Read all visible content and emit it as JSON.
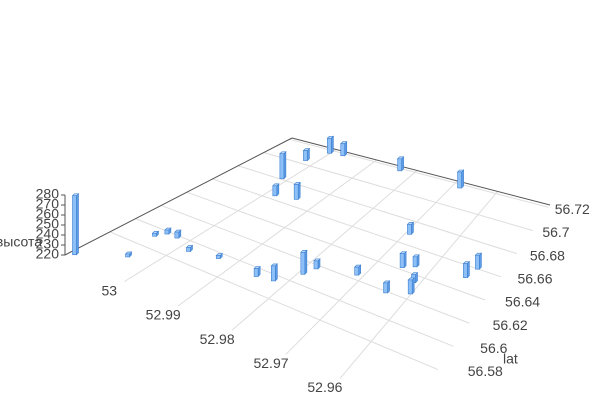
{
  "chart_data": {
    "type": "bar3d",
    "x": [
      53.01,
      53.004,
      53.005,
      53.004,
      53.002,
      52.998,
      52.993,
      52.985,
      52.982,
      52.979,
      52.978,
      52.971,
      52.998,
      52.994,
      53.001,
      53.002,
      53.0,
      52.997,
      52.983,
      52.968,
      52.969,
      52.965,
      52.963,
      52.961,
      52.96,
      52.964,
      52.953,
      52.952
    ],
    "y": [
      56.549,
      56.566,
      56.592,
      56.598,
      56.598,
      56.591,
      56.595,
      56.593,
      56.595,
      56.609,
      56.617,
      56.624,
      56.664,
      56.667,
      56.681,
      56.704,
      56.717,
      56.718,
      56.718,
      56.717,
      56.669,
      56.642,
      56.646,
      56.634,
      56.625,
      56.619,
      56.651,
      56.66
    ],
    "values": [
      279,
      223,
      223,
      224,
      226,
      224,
      223,
      228,
      235,
      242,
      228,
      228,
      230,
      235,
      245,
      230,
      235,
      232,
      232,
      236,
      230,
      234,
      230,
      228,
      234,
      230,
      234,
      234
    ],
    "color": "#8ec0f8",
    "xlim": [
      53.011,
      52.947
    ],
    "xticks": [
      53,
      52.99,
      52.98,
      52.97,
      52.96
    ],
    "ylim": [
      56.545,
      56.722
    ],
    "yticks": [
      56.58,
      56.6,
      56.62,
      56.64,
      56.66,
      56.68,
      56.7,
      56.72
    ],
    "ylabel": "lat",
    "zlim": [
      220,
      280
    ],
    "zticks": [
      220,
      230,
      240,
      250,
      260,
      270,
      280
    ],
    "zlabel": "высота",
    "grid": true
  }
}
